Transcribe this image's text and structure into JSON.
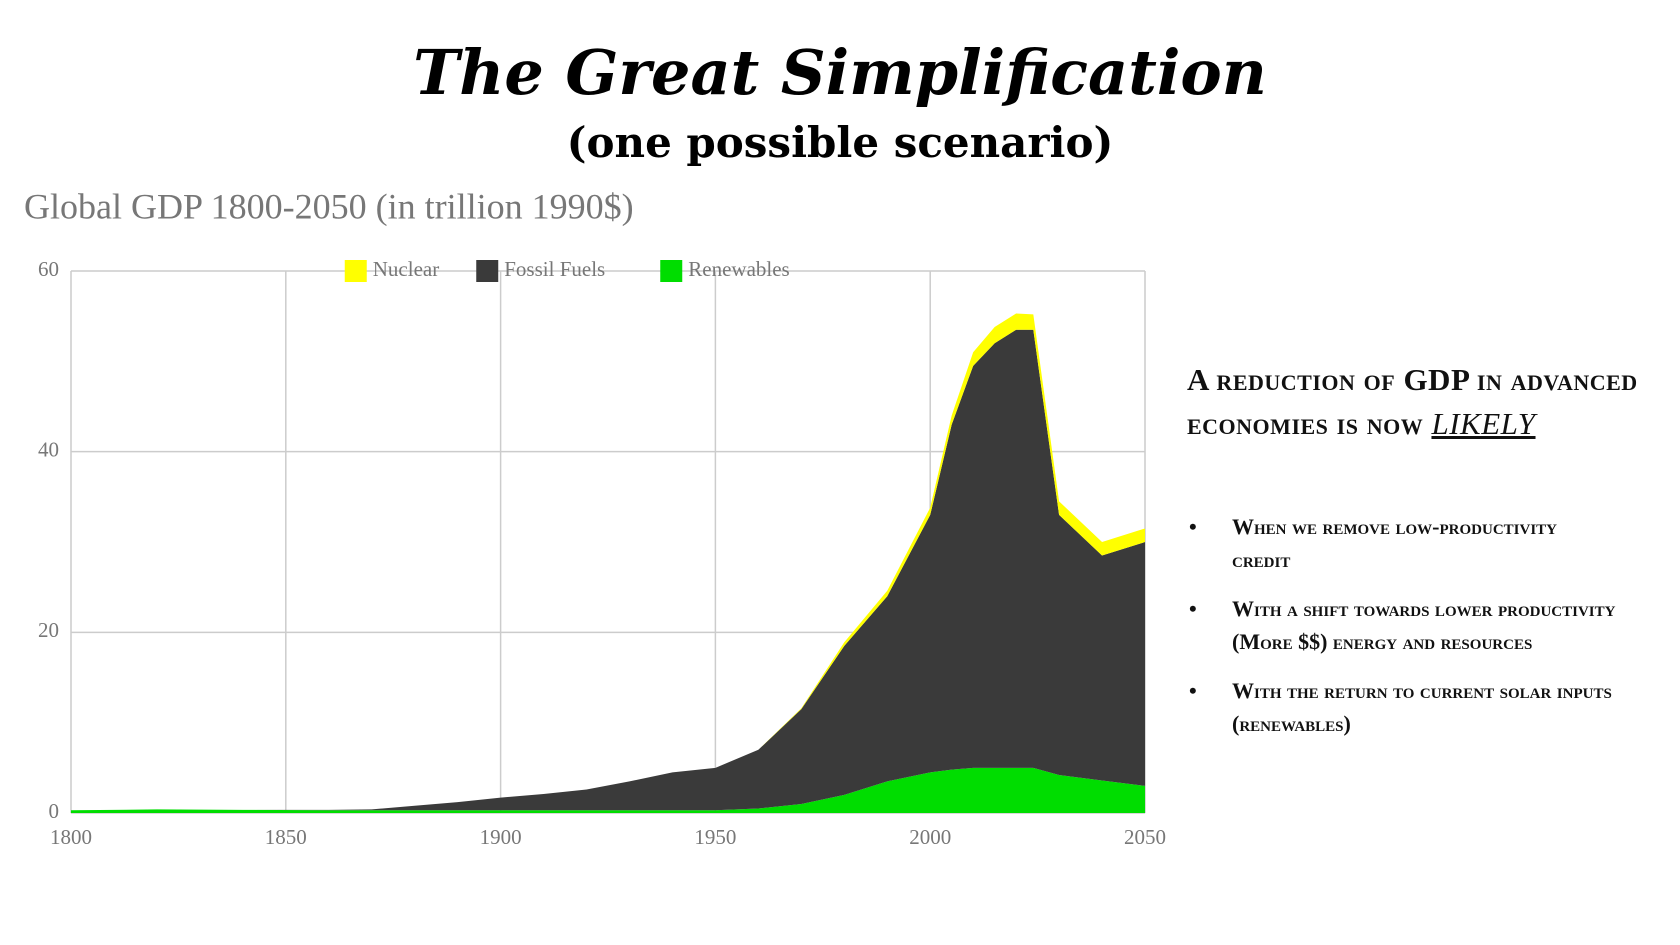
{
  "slide": {
    "title": "The Great Simplification",
    "subtitle": "(one possible scenario)",
    "headline": "A reduction of GDP in advanced economies is now",
    "headline_emphasis": "LIKELY",
    "bullets": [
      "When we remove low-productivity credit",
      "With a shift towards lower productivity (More $$) energy and resources",
      "With the return to current solar inputs (renewables)"
    ]
  },
  "chart_data": {
    "type": "stacked-area",
    "title": "Global GDP 1800-2050 (in trillion 1990$)",
    "x": [
      1800,
      1820,
      1840,
      1860,
      1870,
      1880,
      1890,
      1900,
      1910,
      1920,
      1930,
      1940,
      1950,
      1960,
      1970,
      1980,
      1990,
      2000,
      2005,
      2010,
      2015,
      2020,
      2024,
      2030,
      2040,
      2050
    ],
    "series": [
      {
        "name": "Nuclear",
        "color": "#ffff00",
        "values": [
          0,
          0,
          0,
          0,
          0,
          0,
          0,
          0,
          0,
          0,
          0,
          0,
          0,
          0,
          0.1,
          0.4,
          0.6,
          0.8,
          1,
          1.5,
          1.8,
          1.8,
          1.7,
          1.5,
          1.5,
          1.5
        ]
      },
      {
        "name": "Fossil Fuels",
        "color": "#3a3a3a",
        "values": [
          0,
          0,
          0,
          0.05,
          0.1,
          0.5,
          0.9,
          1.4,
          1.8,
          2.3,
          3.2,
          4.2,
          4.7,
          6.5,
          10.5,
          16.5,
          20.5,
          28.5,
          38.2,
          44.5,
          47,
          48.5,
          48.5,
          28.8,
          24.9,
          27
        ]
      },
      {
        "name": "Renewables",
        "color": "#00dd00",
        "values": [
          0.3,
          0.4,
          0.35,
          0.3,
          0.3,
          0.3,
          0.3,
          0.3,
          0.3,
          0.3,
          0.3,
          0.3,
          0.3,
          0.5,
          1,
          2,
          3.5,
          4.5,
          4.8,
          5,
          5,
          5,
          5,
          4.2,
          3.6,
          3
        ]
      }
    ],
    "xlim": [
      1800,
      2050
    ],
    "xticks": [
      1800,
      1850,
      1900,
      1950,
      2000,
      2050
    ],
    "ylim": [
      0,
      60
    ],
    "yticks": [
      0,
      20,
      40,
      60
    ],
    "grid": true,
    "legend": "top"
  }
}
